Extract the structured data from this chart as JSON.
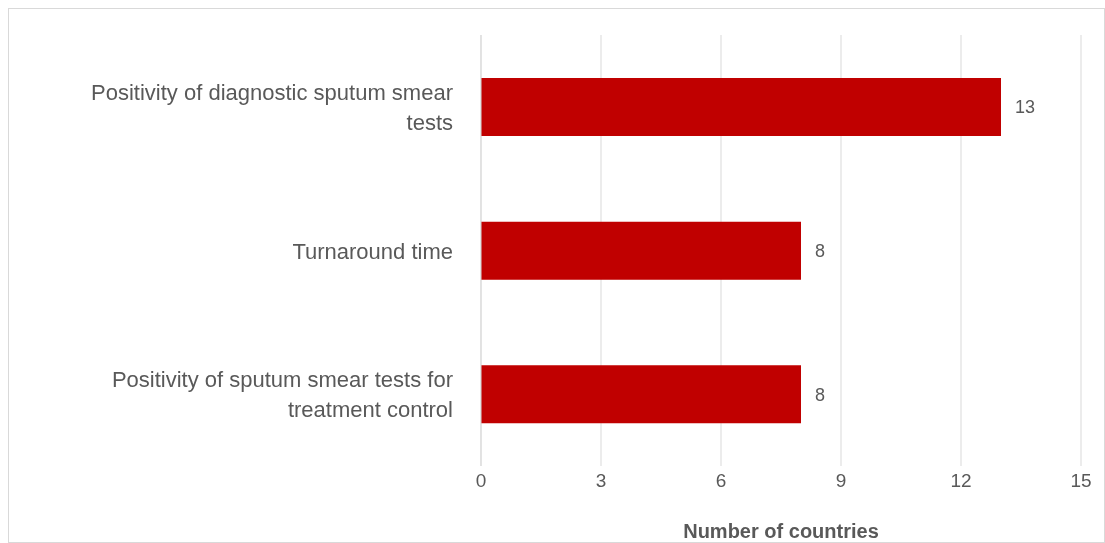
{
  "chart_data": {
    "type": "bar",
    "orientation": "horizontal",
    "categories": [
      "Positivity of diagnostic sputum smear tests",
      "Turnaround time",
      "Positivity of sputum smear tests for treatment control"
    ],
    "values": [
      13,
      8,
      8
    ],
    "color": "#c00000",
    "xlim": [
      0,
      15
    ],
    "xticks": [
      0,
      3,
      6,
      9,
      12,
      15
    ],
    "xlabel": "Number of countries",
    "grid": "x",
    "data_labels": true
  }
}
